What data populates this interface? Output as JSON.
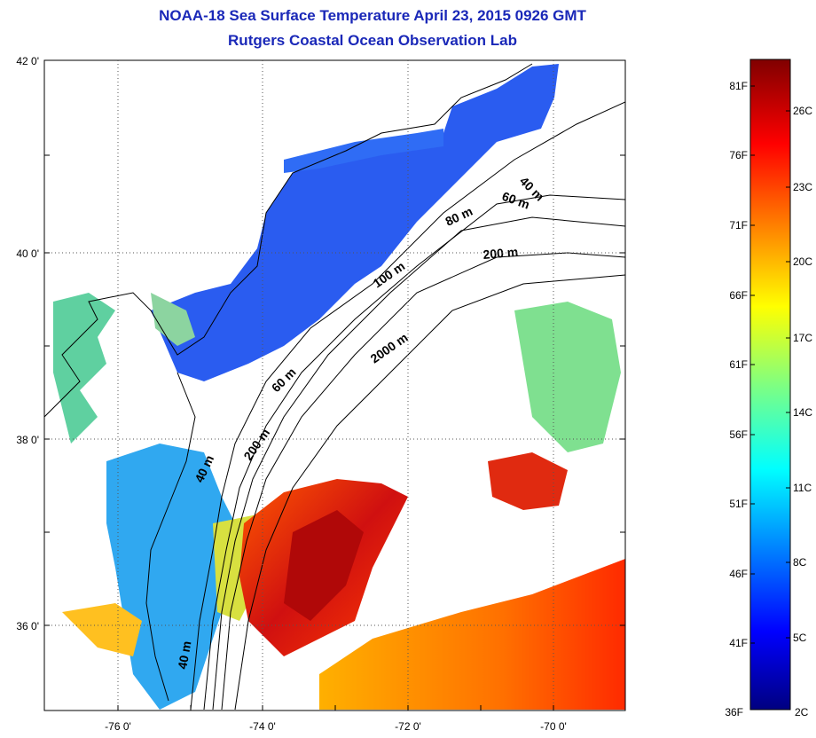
{
  "title_line1": "NOAA-18 Sea Surface Temperature April 23, 2015 0926 GMT",
  "title_line2": "Rutgers Coastal Ocean Observation Lab",
  "map": {
    "lat_labels": [
      "42 0'",
      "40 0'",
      "38 0'",
      "36 0'"
    ],
    "lon_labels": [
      "-76 0'",
      "-74 0'",
      "-72 0'",
      "-70 0'"
    ],
    "grid": true,
    "bathymetry_labels": [
      "40 m",
      "60 m",
      "80 m",
      "200 m",
      "100 m",
      "2000 m",
      "60 m",
      "200 m",
      "40 m",
      "40 m"
    ]
  },
  "colorbar": {
    "fahrenheit_labels": [
      "81F",
      "76F",
      "71F",
      "66F",
      "61F",
      "56F",
      "51F",
      "46F",
      "41F",
      "36F"
    ],
    "celsius_labels": [
      "26C",
      "23C",
      "20C",
      "17C",
      "14C",
      "11C",
      "8C",
      "5C",
      "2C"
    ],
    "colors": [
      "#000080",
      "#0000ff",
      "#0080ff",
      "#00ffff",
      "#80ff80",
      "#ffff00",
      "#ff8000",
      "#ff0000",
      "#800000"
    ]
  }
}
